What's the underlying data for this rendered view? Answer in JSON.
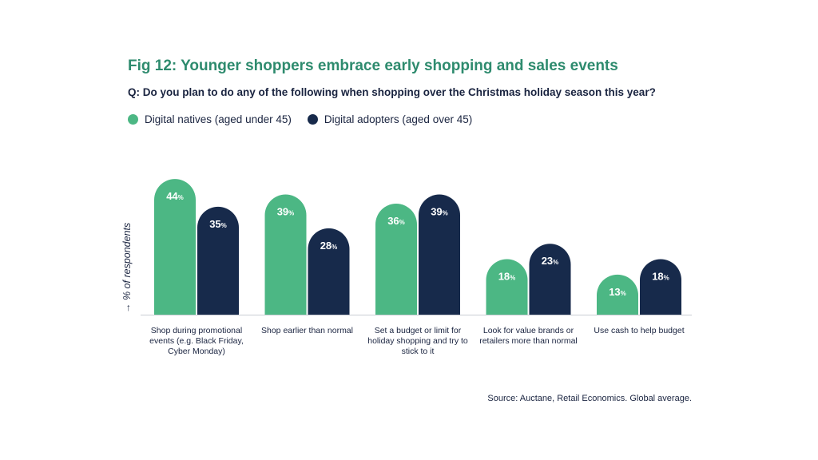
{
  "chart_data": {
    "type": "bar",
    "title": "Fig 12: Younger shoppers embrace early shopping and sales events",
    "subtitle": "Q: Do you plan to do any of the following when shopping over the Christmas holiday season this year?",
    "ylabel": "→ % of respondents",
    "xlabel": "",
    "ylim": [
      0,
      50
    ],
    "unit": "%",
    "categories": [
      "Shop during promotional events (e.g. Black Friday, Cyber Monday)",
      "Shop earlier than normal",
      "Set a budget or limit for holiday shopping and try to stick to it",
      "Look for value brands or retailers more than normal",
      "Use cash to help budget"
    ],
    "series": [
      {
        "name": "Digital natives (aged under 45)",
        "color": "#4cb784",
        "values": [
          44,
          39,
          36,
          18,
          13
        ]
      },
      {
        "name": "Digital adopters (aged over 45)",
        "color": "#172a4b",
        "values": [
          35,
          28,
          39,
          23,
          18
        ]
      }
    ],
    "source": "Source: Auctane, Retail Economics. Global average."
  }
}
